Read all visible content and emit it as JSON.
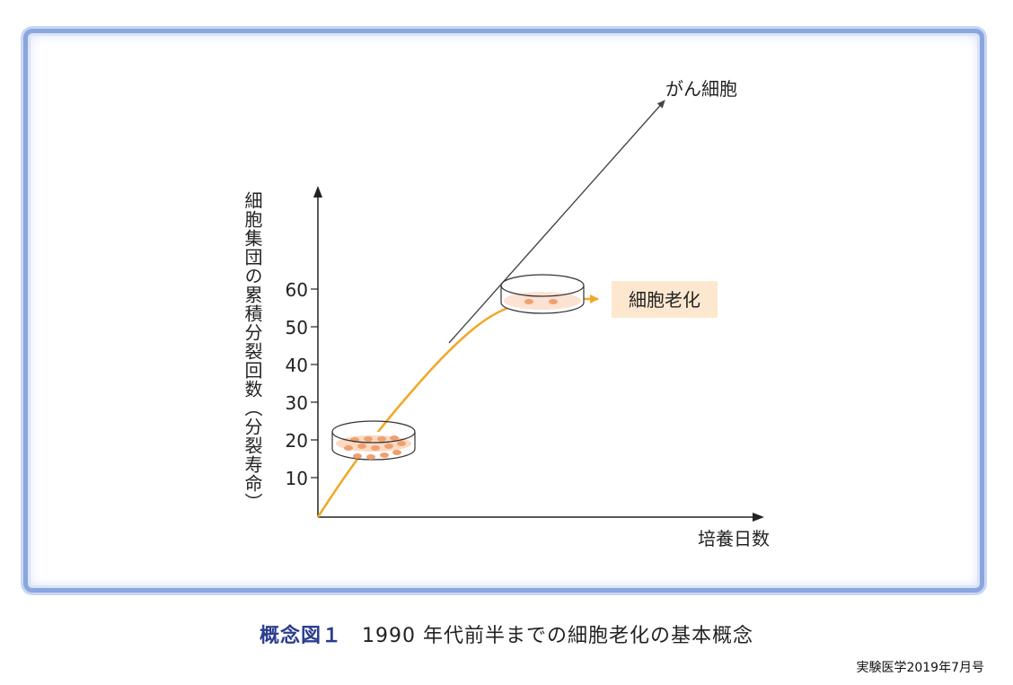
{
  "diagram": {
    "y_axis_label": "細胞集団の累積分裂回数（分裂寿命）",
    "x_axis_label": "培養日数",
    "y_ticks": [
      "10",
      "20",
      "30",
      "40",
      "50",
      "60"
    ],
    "cancer_label": "がん細胞",
    "senescence_label": "細胞老化",
    "colors": {
      "growth_curve": "#f0a92b",
      "cancer_line": "#444444",
      "senescence_box": "#fde8cf",
      "dish_cells": "#f0a070",
      "frame": "#8aa6df"
    }
  },
  "caption": {
    "label": "概念図１",
    "text": "1990 年代前半までの細胞老化の基本概念"
  },
  "source": "実験医学2019年7月号"
}
